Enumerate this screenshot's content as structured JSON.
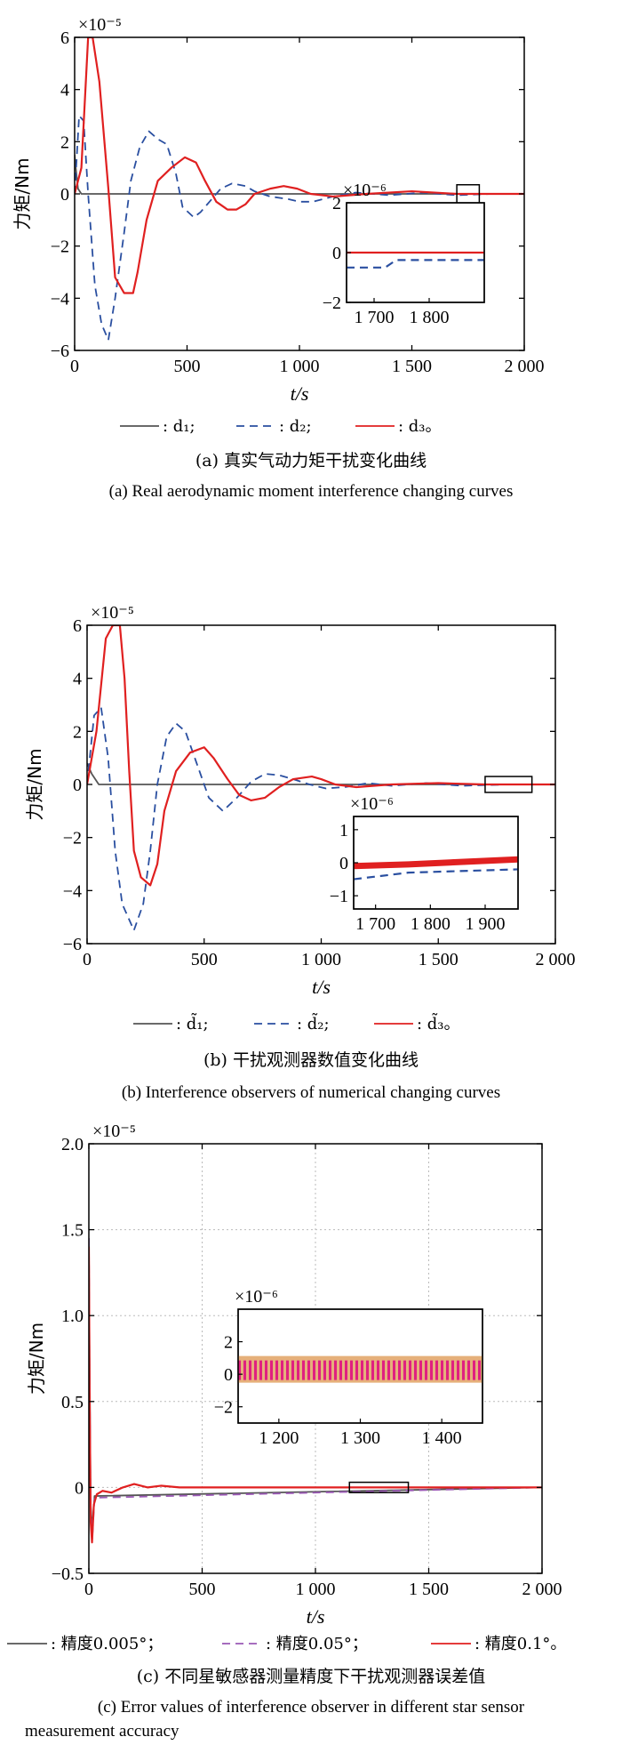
{
  "chart_data": [
    {
      "type": "line",
      "caption_cn": "(a) 真实气动力矩干扰变化曲线",
      "caption_en": "(a) Real aerodynamic moment interference changing curves",
      "xlabel": "t/s",
      "ylabel": "力矩/Nm",
      "yexp": "×10⁻⁵",
      "xlim": [
        0,
        2000
      ],
      "ylim": [
        -6,
        6
      ],
      "xticks": [
        0,
        500,
        1000,
        1500,
        2000
      ],
      "xtick_labels": [
        "0",
        "500",
        "1 000",
        "1 500",
        "2 000"
      ],
      "yticks": [
        -6,
        -4,
        -2,
        0,
        2,
        4,
        6
      ],
      "ytick_labels": [
        "−6",
        "−4",
        "−2",
        "0",
        "2",
        "4",
        "6"
      ],
      "grid": false,
      "series": [
        {
          "name": ": d₁;",
          "color": "#555555",
          "dash": "solid",
          "x": [
            0,
            5,
            15,
            30,
            2000
          ],
          "y": [
            1.5,
            1.0,
            0.2,
            0,
            0
          ]
        },
        {
          "name": ": d₂;",
          "color": "#2a4fa0",
          "dash": "dashed",
          "x": [
            0,
            20,
            40,
            60,
            90,
            120,
            150,
            180,
            220,
            250,
            290,
            330,
            370,
            410,
            450,
            480,
            530,
            560,
            600,
            650,
            700,
            760,
            800,
            870,
            950,
            1000,
            1060,
            1150,
            1250,
            1400,
            1550,
            1700,
            1850,
            2000
          ],
          "y": [
            0,
            3.0,
            2.8,
            0,
            -3.5,
            -5.0,
            -5.6,
            -4.0,
            -1.5,
            0.5,
            1.8,
            2.4,
            2.1,
            1.9,
            0.8,
            -0.5,
            -0.9,
            -0.7,
            -0.3,
            0.2,
            0.4,
            0.3,
            0.1,
            -0.1,
            -0.2,
            -0.3,
            -0.3,
            -0.1,
            0.05,
            -0.05,
            0.05,
            -0.05,
            0,
            0
          ]
        },
        {
          "name": ": d₃。",
          "color": "#e02020",
          "dash": "solid",
          "x": [
            0,
            30,
            60,
            80,
            110,
            150,
            180,
            220,
            260,
            280,
            320,
            370,
            430,
            490,
            540,
            580,
            630,
            680,
            720,
            760,
            800,
            870,
            930,
            990,
            1050,
            1150,
            1300,
            1500,
            1700,
            2000
          ],
          "y": [
            0,
            1.0,
            6.0,
            6.0,
            4.3,
            0.2,
            -3.2,
            -3.8,
            -3.8,
            -3.0,
            -1.0,
            0.5,
            1.0,
            1.4,
            1.2,
            0.5,
            -0.3,
            -0.6,
            -0.6,
            -0.4,
            0.0,
            0.2,
            0.3,
            0.2,
            0.0,
            -0.1,
            0.0,
            0.1,
            0.0,
            0.0
          ]
        }
      ],
      "inset": {
        "yexp": "×10⁻⁶",
        "xlim": [
          1650,
          1900
        ],
        "ylim": [
          -2,
          2
        ],
        "xticks": [
          1700,
          1800
        ],
        "xtick_labels": [
          "1 700",
          "1 800"
        ],
        "yticks": [
          -2,
          0,
          2
        ],
        "ytick_labels": [
          "−2",
          "0",
          "2"
        ],
        "series": [
          {
            "color": "#2a4fa0",
            "dash": "dashed",
            "x": [
              1650,
              1720,
              1740,
              1900
            ],
            "y": [
              -0.6,
              -0.6,
              -0.3,
              -0.3
            ]
          },
          {
            "color": "#e02020",
            "dash": "solid",
            "x": [
              1650,
              1900
            ],
            "y": [
              0,
              0
            ]
          }
        ]
      },
      "legend": [
        ": d₁;",
        ": d₂;",
        ": d₃。"
      ]
    },
    {
      "type": "line",
      "caption_cn": "(b) 干扰观测器数值变化曲线",
      "caption_en": "(b) Interference observers of numerical changing curves",
      "xlabel": "t/s",
      "ylabel": "力矩/Nm",
      "yexp": "×10⁻⁵",
      "xlim": [
        0,
        2000
      ],
      "ylim": [
        -6,
        6
      ],
      "xticks": [
        0,
        500,
        1000,
        1500,
        2000
      ],
      "xtick_labels": [
        "0",
        "500",
        "1 000",
        "1 500",
        "2 000"
      ],
      "yticks": [
        -6,
        -4,
        -2,
        0,
        2,
        4,
        6
      ],
      "ytick_labels": [
        "−6",
        "−4",
        "−2",
        "0",
        "2",
        "4",
        "6"
      ],
      "grid": false,
      "series": [
        {
          "name": ": d̃₁;",
          "color": "#555555",
          "dash": "solid",
          "x": [
            0,
            20,
            50,
            2000
          ],
          "y": [
            0.8,
            0.4,
            0,
            0
          ]
        },
        {
          "name": ": d̃₂;",
          "color": "#2a4fa0",
          "dash": "dashed",
          "x": [
            0,
            30,
            60,
            90,
            120,
            150,
            200,
            240,
            270,
            300,
            340,
            380,
            420,
            460,
            520,
            580,
            640,
            700,
            760,
            820,
            880,
            950,
            1020,
            1100,
            1200,
            1300,
            1450,
            1600,
            1800,
            2000
          ],
          "y": [
            0,
            2.6,
            2.9,
            1.0,
            -2.5,
            -4.5,
            -5.5,
            -4.5,
            -2.5,
            0.0,
            1.8,
            2.3,
            2.0,
            1.0,
            -0.5,
            -1.0,
            -0.5,
            0.1,
            0.4,
            0.35,
            0.2,
            0.0,
            -0.15,
            -0.1,
            0.05,
            -0.05,
            0.05,
            -0.05,
            0,
            0
          ]
        },
        {
          "name": ": d̃₃。",
          "color": "#e02020",
          "dash": "solid",
          "x": [
            0,
            40,
            80,
            110,
            140,
            160,
            180,
            200,
            230,
            270,
            300,
            330,
            380,
            440,
            500,
            540,
            600,
            650,
            700,
            760,
            820,
            880,
            960,
            1000,
            1060,
            1150,
            1300,
            1500,
            1700,
            2000
          ],
          "y": [
            0,
            2.0,
            5.5,
            6.0,
            6.0,
            4.0,
            0.5,
            -2.5,
            -3.5,
            -3.8,
            -3.0,
            -1.0,
            0.5,
            1.2,
            1.4,
            1.0,
            0.2,
            -0.4,
            -0.6,
            -0.5,
            -0.1,
            0.2,
            0.3,
            0.2,
            0.0,
            -0.1,
            0.0,
            0.05,
            0.0,
            0.0
          ]
        }
      ],
      "inset": {
        "yexp": "×10⁻⁶",
        "xlim": [
          1660,
          1960
        ],
        "ylim": [
          -1.4,
          1.4
        ],
        "xticks": [
          1700,
          1800,
          1900
        ],
        "xtick_labels": [
          "1 700",
          "1 800",
          "1 900"
        ],
        "yticks": [
          -1,
          0,
          1
        ],
        "ytick_labels": [
          "−1",
          "0",
          "1"
        ],
        "series": [
          {
            "color": "#2a4fa0",
            "dash": "dashed",
            "x": [
              1660,
              1760,
              1960
            ],
            "y": [
              -0.5,
              -0.3,
              -0.2
            ]
          },
          {
            "color": "#e02020",
            "dash": "solid",
            "width": 7,
            "x": [
              1660,
              1760,
              1960
            ],
            "y": [
              -0.1,
              -0.05,
              0.1
            ]
          }
        ]
      },
      "legend": [
        ": d̃₁;",
        ": d̃₂;",
        ": d̃₃。"
      ]
    },
    {
      "type": "line",
      "caption_cn": "(c) 不同星敏感器测量精度下干扰观测器误差值",
      "caption_en_1": "(c) Error values of interference observer in different star sensor",
      "caption_en_2": "measurement accuracy",
      "xlabel": "t/s",
      "ylabel": "力矩/Nm",
      "yexp": "×10⁻⁵",
      "xlim": [
        0,
        2000
      ],
      "ylim": [
        -0.5,
        2.0
      ],
      "xticks": [
        0,
        500,
        1000,
        1500,
        2000
      ],
      "xtick_labels": [
        "0",
        "500",
        "1 000",
        "1 500",
        "2 000"
      ],
      "yticks": [
        -0.5,
        0,
        0.5,
        1.0,
        1.5,
        2.0
      ],
      "ytick_labels": [
        "−0.5",
        "0",
        "0.5",
        "1.0",
        "1.5",
        "2.0"
      ],
      "grid": true,
      "series": [
        {
          "name": ": 精度0.005°；",
          "color": "#555555",
          "dash": "solid",
          "x": [
            0,
            3,
            8,
            15,
            25,
            2000
          ],
          "y": [
            1.45,
            0.8,
            -0.1,
            -0.25,
            -0.05,
            0
          ]
        },
        {
          "name": ": 精度0.05°；",
          "color": "#9b59b6",
          "dash": "dashed",
          "x": [
            0,
            3,
            8,
            15,
            25,
            2000
          ],
          "y": [
            1.45,
            0.7,
            -0.15,
            -0.3,
            -0.06,
            0
          ]
        },
        {
          "name": ": 精度0.1°。",
          "color": "#e02020",
          "dash": "solid",
          "x": [
            0,
            3,
            8,
            14,
            22,
            35,
            60,
            100,
            150,
            200,
            260,
            320,
            400,
            600,
            1000,
            2000
          ],
          "y": [
            1.4,
            0.6,
            -0.2,
            -0.32,
            -0.1,
            -0.04,
            -0.02,
            -0.03,
            0.0,
            0.02,
            0.0,
            0.01,
            0.0,
            0.0,
            0.0,
            0.0
          ]
        }
      ],
      "inset": {
        "yexp": "×10⁻⁶",
        "xlim": [
          1150,
          1450
        ],
        "ylim": [
          -3,
          4
        ],
        "xticks": [
          1200,
          1300,
          1400
        ],
        "xtick_labels": [
          "1 200",
          "1 300",
          "1 400"
        ],
        "yticks": [
          -2,
          0,
          2
        ],
        "ytick_labels": [
          "−2",
          "0",
          "2"
        ],
        "series": [
          {
            "color": "#e6b07a",
            "dash": "solid",
            "width": 30,
            "x": [
              1150,
              1450
            ],
            "y": [
              0.3,
              0.3
            ]
          },
          {
            "color": "#e02080",
            "dash": "dotted",
            "width": 22,
            "x": [
              1150,
              1450
            ],
            "y": [
              0.25,
              0.25
            ]
          }
        ]
      },
      "legend": [
        ": 精度0.005°；",
        ": 精度0.05°；",
        ": 精度0.1°。"
      ]
    }
  ]
}
